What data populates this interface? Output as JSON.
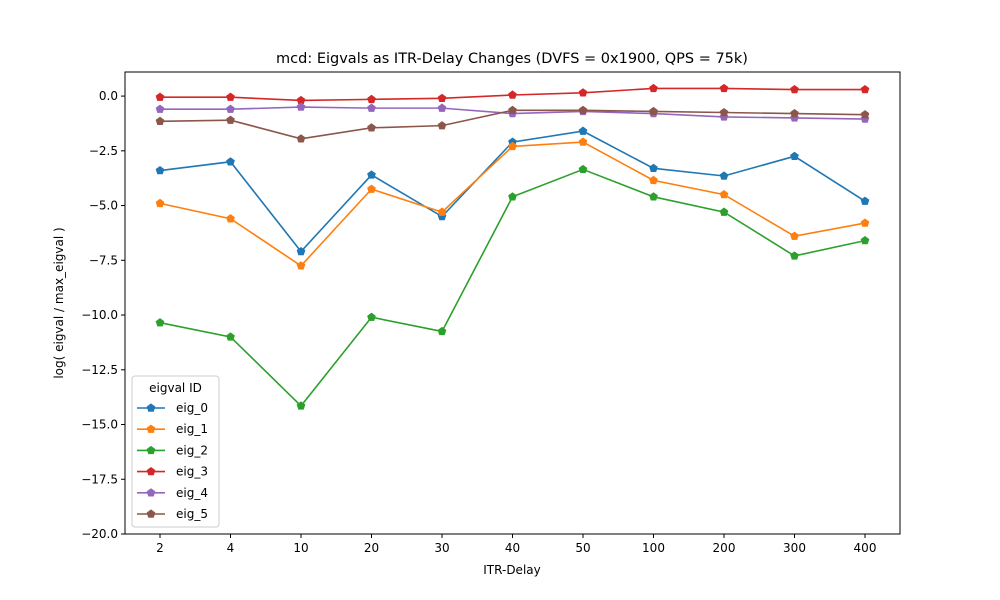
{
  "chart_data": {
    "type": "line",
    "title": "mcd: Eigvals as ITR-Delay Changes (DVFS = 0x1900, QPS = 75k)",
    "xlabel": "ITR-Delay",
    "ylabel": "log( eigval / max_eigval )",
    "categories": [
      "2",
      "4",
      "10",
      "20",
      "30",
      "40",
      "50",
      "100",
      "200",
      "300",
      "400"
    ],
    "ylim": [
      -20.0,
      1.1
    ],
    "yticks": [
      0.0,
      -2.5,
      -5.0,
      -7.5,
      -10.0,
      -12.5,
      -15.0,
      -17.5,
      -20.0
    ],
    "ytick_labels": [
      "0.0",
      "−2.5",
      "−5.0",
      "−7.5",
      "−10.0",
      "−12.5",
      "−15.0",
      "−17.5",
      "−20.0"
    ],
    "grid": false,
    "legend": {
      "title": "eigval ID",
      "placement": "lower-left"
    },
    "marker": "pentagon",
    "series": [
      {
        "name": "eig_0",
        "color": "#1f77b4",
        "values": [
          -3.4,
          -3.0,
          -7.1,
          -3.6,
          -5.5,
          -2.1,
          -1.6,
          -3.3,
          -3.65,
          -2.75,
          -4.8
        ]
      },
      {
        "name": "eig_1",
        "color": "#ff7f0e",
        "values": [
          -4.9,
          -5.6,
          -7.75,
          -4.25,
          -5.3,
          -2.3,
          -2.1,
          -3.85,
          -4.5,
          -6.4,
          -5.8
        ]
      },
      {
        "name": "eig_2",
        "color": "#2ca02c",
        "values": [
          -10.35,
          -11.0,
          -14.15,
          -10.1,
          -10.75,
          -4.6,
          -3.35,
          -4.6,
          -5.3,
          -7.3,
          -6.6
        ]
      },
      {
        "name": "eig_3",
        "color": "#d62728",
        "values": [
          -0.05,
          -0.05,
          -0.2,
          -0.15,
          -0.1,
          0.05,
          0.15,
          0.35,
          0.35,
          0.3,
          0.3
        ]
      },
      {
        "name": "eig_4",
        "color": "#9467bd",
        "values": [
          -0.6,
          -0.6,
          -0.5,
          -0.55,
          -0.55,
          -0.8,
          -0.7,
          -0.8,
          -0.95,
          -1.0,
          -1.05
        ]
      },
      {
        "name": "eig_5",
        "color": "#8c564b",
        "values": [
          -1.15,
          -1.1,
          -1.95,
          -1.45,
          -1.35,
          -0.65,
          -0.65,
          -0.7,
          -0.75,
          -0.8,
          -0.85
        ]
      }
    ]
  }
}
